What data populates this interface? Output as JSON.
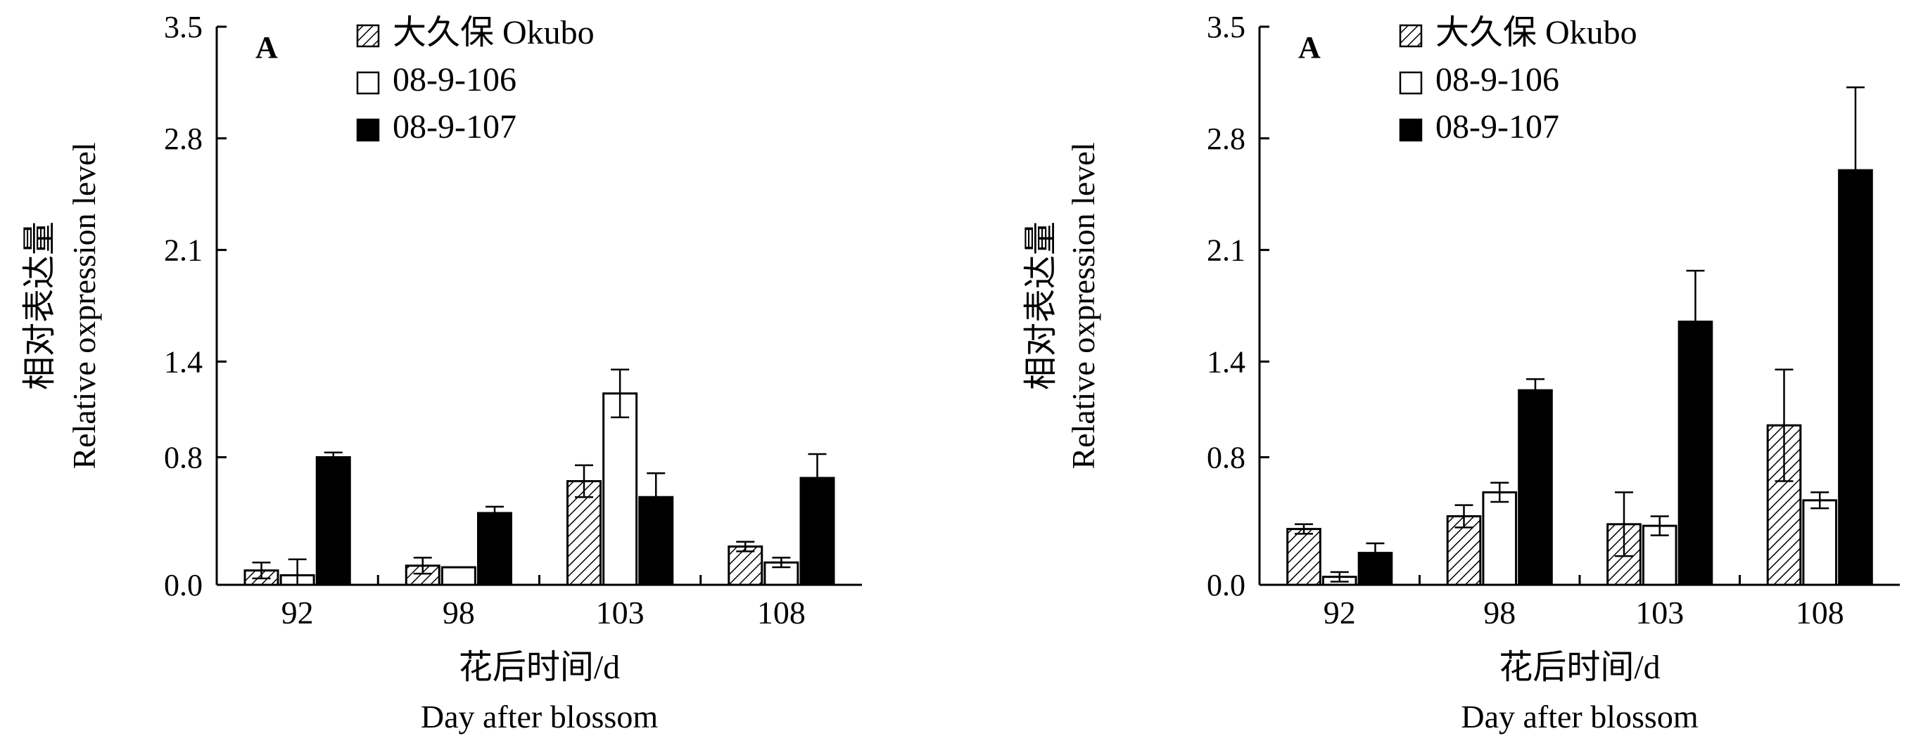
{
  "chart_data": [
    {
      "type": "bar",
      "panel_label": "A",
      "categories": [
        "92",
        "98",
        "103",
        "108"
      ],
      "series": [
        {
          "name": "大久保 Okubo",
          "fill": "hatch",
          "values": [
            0.09,
            0.12,
            0.65,
            0.24
          ],
          "errors": [
            0.05,
            0.05,
            0.1,
            0.03
          ]
        },
        {
          "name": "08-9-106",
          "fill": "white",
          "values": [
            0.06,
            0.11,
            1.2,
            0.14
          ],
          "errors": [
            0.1,
            0.0,
            0.15,
            0.03
          ]
        },
        {
          "name": "08-9-107",
          "fill": "black",
          "values": [
            0.8,
            0.45,
            0.55,
            0.67
          ],
          "errors": [
            0.03,
            0.04,
            0.15,
            0.15
          ]
        }
      ],
      "ylim": [
        0,
        3.5
      ],
      "yticks": [
        "0.0",
        "0.8",
        "1.4",
        "2.1",
        "2.8",
        "3.5"
      ],
      "ylabel_cn": "相对表达量",
      "ylabel_en": "Relative oxpression level",
      "xlabel_cn": "花后时间/d",
      "xlabel_en": "Day after blossom",
      "legend_position": "top-left"
    },
    {
      "type": "bar",
      "panel_label": "A",
      "categories": [
        "92",
        "98",
        "103",
        "108"
      ],
      "series": [
        {
          "name": "大久保 Okubo",
          "fill": "hatch",
          "values": [
            0.35,
            0.43,
            0.38,
            1.0
          ],
          "errors": [
            0.03,
            0.07,
            0.2,
            0.35
          ]
        },
        {
          "name": "08-9-106",
          "fill": "white",
          "values": [
            0.05,
            0.58,
            0.37,
            0.53
          ],
          "errors": [
            0.03,
            0.06,
            0.06,
            0.05
          ]
        },
        {
          "name": "08-9-107",
          "fill": "black",
          "values": [
            0.2,
            1.22,
            1.65,
            2.6
          ],
          "errors": [
            0.06,
            0.07,
            0.32,
            0.52
          ]
        }
      ],
      "ylim": [
        0,
        3.5
      ],
      "yticks": [
        "0.0",
        "0.8",
        "1.4",
        "2.1",
        "2.8",
        "3.5"
      ],
      "ylabel_cn": "相对表达量",
      "ylabel_en": "Relative oxpression level",
      "xlabel_cn": "花后时间/d",
      "xlabel_en": "Day after blossom",
      "legend_position": "top-left"
    }
  ]
}
